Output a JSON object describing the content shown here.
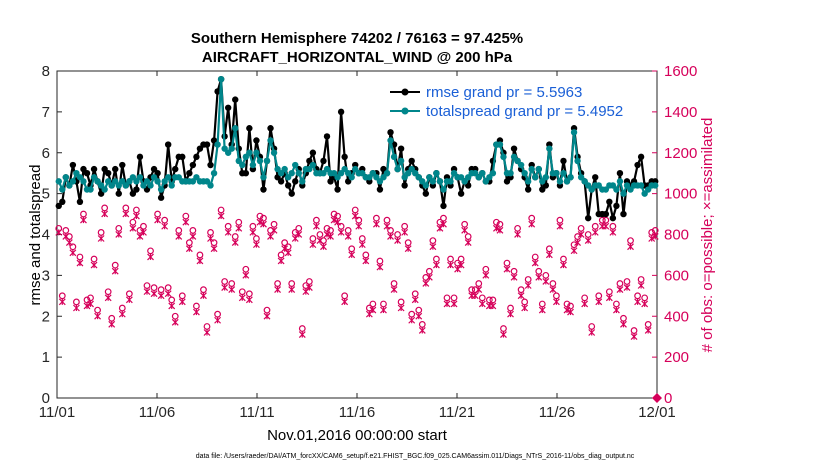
{
  "chart_data": {
    "type": "line",
    "title": "Southern Hemisphere 74202 / 76163 = 97.425%",
    "subtitle": "AIRCRAFT_HORIZONTAL_WIND @ 200 hPa",
    "xlabel": "Nov.01,2016 00:00:00 start",
    "ylabel_left": "rmse and totalspread",
    "ylabel_right": "# of obs: o=possible; ×=assimilated",
    "footnote": "data file: /Users/raeder/DAI/ATM_forcXX/CAM6_setup/f.e21.FHIST_BGC.f09_025.CAM6assim.011/Diags_NTrS_2016-11/obs_diag_output.nc",
    "x_ticks": [
      0,
      5,
      10,
      15,
      20,
      25,
      30
    ],
    "x_tick_labels": [
      "11/01",
      "11/06",
      "11/11",
      "11/16",
      "11/21",
      "11/26",
      "12/01"
    ],
    "ylim_left": [
      0,
      8
    ],
    "y_ticks_left": [
      "0",
      "1",
      "2",
      "3",
      "4",
      "5",
      "6",
      "7",
      "8"
    ],
    "ylim_right": [
      0,
      1600
    ],
    "y_ticks_right": [
      "0",
      "200",
      "400",
      "600",
      "800",
      "1000",
      "1200",
      "1400",
      "1600"
    ],
    "colors": {
      "rmse": "#000000",
      "spread": "#00868b",
      "obs": "#d6005a",
      "axis_right": "#d6005a",
      "legend_text": "#1a5fd6"
    },
    "series": [
      {
        "name": "rmse grand pr = 5.5963",
        "values": [
          4.7,
          4.8,
          5.4,
          5.2,
          5.7,
          5.3,
          4.8,
          5.6,
          5.5,
          5.2,
          5.6,
          5.3,
          5.0,
          5.6,
          5.5,
          5.2,
          5.6,
          5.0,
          5.7,
          5.2,
          5.3,
          5.0,
          5.1,
          5.9,
          5.3,
          5.1,
          5.4,
          5.6,
          5.5,
          4.9,
          5.2,
          6.2,
          5.3,
          5.6,
          5.9,
          5.9,
          5.3,
          5.5,
          5.7,
          5.9,
          6.1,
          6.2,
          6.2,
          5.7,
          6.3,
          7.5,
          7.8,
          6.4,
          7.1,
          6.2,
          7.3,
          6.1,
          5.5,
          5.5,
          6.6,
          5.6,
          6.3,
          5.9,
          5.1,
          5.8,
          6.6,
          6.1,
          5.4,
          5.3,
          5.5,
          5.2,
          5.0,
          5.3,
          5.6,
          5.2,
          5.5,
          5.8,
          6.0,
          5.6,
          5.5,
          5.8,
          6.4,
          5.3,
          5.4,
          5.1,
          7.0,
          5.9,
          5.3,
          5.5,
          5.7,
          5.5,
          5.6,
          5.4,
          5.3,
          5.5,
          5.5,
          5.1,
          5.6,
          5.5,
          6.5,
          6.2,
          5.6,
          6.1,
          5.2,
          5.6,
          5.8,
          5.6,
          5.4,
          5.2,
          5.0,
          5.4,
          5.2,
          5.5,
          5.3,
          4.7,
          5.4,
          5.2,
          5.6,
          5.4,
          5.0,
          5.3,
          5.2,
          5.6,
          5.6,
          5.4,
          5.5,
          5.3,
          5.3,
          5.8,
          6.2,
          6.3,
          6.0,
          5.3,
          5.4,
          6.1,
          5.8,
          5.6,
          5.4,
          5.1,
          5.7,
          5.4,
          5.6,
          5.1,
          5.2,
          6.2,
          5.4,
          5.5,
          5.2,
          5.8,
          5.3,
          5.4,
          6.6,
          5.9,
          5.5,
          5.3,
          4.4,
          5.1,
          5.4,
          4.5,
          4.5,
          4.5,
          4.8,
          4.4,
          4.7,
          5.5,
          4.5,
          5.3,
          5.2,
          5.3,
          5.7,
          5.9,
          5.2,
          5.2,
          5.3,
          5.3
        ]
      },
      {
        "name": "totalspread grand pr = 5.4952",
        "values": [
          5.3,
          5.1,
          5.4,
          5.2,
          5.3,
          5.5,
          5.4,
          5.3,
          5.1,
          5.1,
          5.4,
          5.3,
          5.2,
          5.1,
          5.3,
          5.2,
          5.3,
          5.2,
          5.3,
          5.2,
          5.3,
          5.4,
          5.3,
          5.4,
          5.2,
          5.3,
          5.2,
          5.4,
          5.3,
          5.1,
          5.3,
          5.4,
          5.2,
          5.4,
          5.4,
          5.3,
          5.3,
          5.3,
          5.3,
          5.4,
          5.3,
          5.3,
          5.3,
          5.2,
          5.5,
          6.2,
          7.8,
          6.1,
          6.0,
          6.1,
          6.6,
          5.8,
          5.7,
          5.9,
          6.0,
          5.7,
          6.0,
          5.8,
          5.4,
          5.8,
          6.3,
          6.0,
          5.6,
          5.5,
          5.6,
          5.4,
          5.5,
          5.7,
          5.5,
          5.3,
          5.6,
          5.6,
          5.7,
          5.5,
          5.5,
          5.5,
          5.6,
          5.5,
          5.5,
          5.4,
          5.5,
          5.6,
          5.5,
          5.4,
          5.6,
          5.5,
          5.5,
          5.4,
          5.4,
          5.5,
          5.4,
          5.3,
          5.4,
          5.5,
          6.3,
          5.9,
          5.6,
          5.8,
          5.4,
          5.5,
          5.6,
          5.5,
          5.4,
          5.3,
          5.2,
          5.4,
          5.3,
          5.5,
          5.3,
          5.1,
          5.3,
          5.3,
          5.5,
          5.4,
          5.4,
          5.3,
          5.4,
          5.5,
          5.5,
          5.4,
          5.5,
          5.3,
          5.4,
          5.5,
          6.2,
          6.2,
          5.9,
          5.5,
          5.5,
          5.9,
          5.8,
          5.7,
          5.5,
          5.3,
          5.6,
          5.4,
          5.6,
          5.3,
          5.4,
          6.1,
          5.5,
          5.5,
          5.3,
          5.5,
          5.3,
          5.4,
          6.5,
          5.8,
          5.4,
          5.3,
          5.2,
          5.1,
          5.2,
          5.2,
          5.1,
          5.1,
          5.2,
          5.2,
          5.1,
          5.3,
          5.0,
          5.2,
          5.1,
          5.2,
          5.2,
          5.2,
          5.0,
          5.1,
          5.2,
          5.2
        ]
      }
    ],
    "obs_possible": [
      830,
      500,
      820,
      790,
      740,
      470,
      690,
      900,
      480,
      490,
      680,
      430,
      810,
      930,
      520,
      390,
      650,
      830,
      440,
      930,
      510,
      860,
      920,
      820,
      840,
      550,
      720,
      540,
      900,
      530,
      870,
      540,
      480,
      400,
      820,
      500,
      890,
      760,
      820,
      450,
      700,
      530,
      350,
      810,
      760,
      410,
      920,
      570,
      840,
      560,
      790,
      860,
      520,
      630,
      510,
      840,
      780,
      890,
      880,
      430,
      820,
      850,
      560,
      700,
      760,
      740,
      560,
      810,
      830,
      340,
      550,
      570,
      780,
      870,
      800,
      770,
      830,
      820,
      900,
      890,
      840,
      500,
      820,
      730,
      920,
      870,
      780,
      700,
      440,
      460,
      880,
      670,
      460,
      870,
      820,
      560,
      800,
      470,
      840,
      760,
      410,
      510,
      430,
      360,
      590,
      620,
      770,
      680,
      860,
      880,
      490,
      680,
      490,
      660,
      680,
      850,
      790,
      530,
      530,
      560,
      490,
      630,
      480,
      480,
      860,
      850,
      340,
      660,
      440,
      620,
      830,
      530,
      470,
      580,
      880,
      690,
      620,
      460,
      600,
      730,
      560,
      500,
      870,
      680,
      460,
      450,
      750,
      790,
      830,
      490,
      800,
      350,
      840,
      500,
      870,
      870,
      520,
      840,
      460,
      560,
      390,
      570,
      770,
      330,
      500,
      580,
      490,
      360,
      810,
      820
    ],
    "obs_assimilated": [
      830,
      490,
      810,
      780,
      730,
      460,
      680,
      890,
      470,
      480,
      670,
      420,
      800,
      920,
      510,
      380,
      640,
      820,
      430,
      920,
      500,
      850,
      910,
      810,
      830,
      540,
      710,
      530,
      890,
      520,
      860,
      530,
      470,
      390,
      810,
      490,
      880,
      750,
      810,
      440,
      690,
      520,
      340,
      800,
      750,
      400,
      910,
      560,
      830,
      550,
      780,
      850,
      510,
      620,
      500,
      830,
      770,
      880,
      870,
      420,
      810,
      840,
      550,
      690,
      750,
      730,
      550,
      800,
      820,
      330,
      540,
      560,
      770,
      860,
      790,
      760,
      820,
      810,
      890,
      880,
      830,
      490,
      810,
      720,
      910,
      860,
      770,
      690,
      430,
      450,
      870,
      660,
      450,
      860,
      810,
      550,
      790,
      460,
      830,
      750,
      400,
      500,
      420,
      350,
      580,
      610,
      760,
      670,
      850,
      870,
      480,
      670,
      480,
      650,
      670,
      840,
      780,
      520,
      520,
      550,
      480,
      620,
      470,
      470,
      850,
      840,
      330,
      650,
      430,
      610,
      820,
      520,
      460,
      570,
      870,
      680,
      610,
      450,
      590,
      720,
      550,
      490,
      860,
      670,
      450,
      440,
      740,
      780,
      820,
      480,
      790,
      340,
      830,
      490,
      860,
      860,
      510,
      830,
      450,
      550,
      380,
      560,
      760,
      320,
      490,
      570,
      480,
      350,
      800,
      810
    ]
  }
}
